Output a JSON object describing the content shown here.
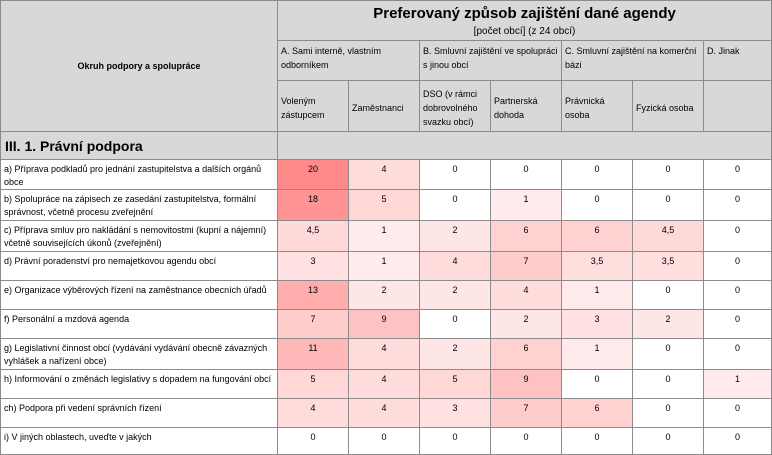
{
  "header": {
    "topic_label": "Okruh podpory a spolupráce",
    "title": "Preferovaný způsob zajištění dané agendy",
    "subtitle": "[počet obcí] (z 24 obcí)",
    "groups": [
      "A. Sami interně, vlastním odborníkem",
      "B. Smluvní zajištění ve spolupráci s jinou obcí",
      "C. Smluvní zajištění na komerční bázi",
      "D. Jinak"
    ],
    "columns": [
      "Voleným zástupcem",
      "Zaměstnanci",
      "DSO (v rámci dobrovolného svazku obcí)",
      "Partnerská dohoda",
      "Právnická osoba",
      "Fyzická osoba",
      ""
    ]
  },
  "section": {
    "title": "III. 1. Právní podpora"
  },
  "rows": [
    {
      "label": "a)    Příprava podkladů pro jednání zastupitelstva a dalších orgánů obce",
      "values": [
        "20",
        "4",
        "0",
        "0",
        "0",
        "0",
        "0"
      ]
    },
    {
      "label": "b)    Spolupráce na zápisech ze zasedání zastupitelstva, formální správnost, včetně procesu zveřejnění",
      "values": [
        "18",
        "5",
        "0",
        "1",
        "0",
        "0",
        "0"
      ]
    },
    {
      "label": "c)    Příprava smluv pro nakládání s nemovitostmi (kupní a nájemní) včetně souvisejících úkonů (zveřejnění)",
      "values": [
        "4,5",
        "1",
        "2",
        "6",
        "6",
        "4,5",
        "0"
      ]
    },
    {
      "label": "d)    Právní poradenství pro nemajetkovou agendu obcí",
      "values": [
        "3",
        "1",
        "4",
        "7",
        "3,5",
        "3,5",
        "0"
      ]
    },
    {
      "label": "e)    Organizace výběrových řízení na zaměstnance obecních úřadů",
      "values": [
        "13",
        "2",
        "2",
        "4",
        "1",
        "0",
        "0"
      ]
    },
    {
      "label": "f)    Personální a mzdová agenda",
      "values": [
        "7",
        "9",
        "0",
        "2",
        "3",
        "2",
        "0"
      ]
    },
    {
      "label": "g)      Legislativní činnost obcí (vydávání vydávání obecně závazných vyhlášek a nařízení obce)",
      "values": [
        "11",
        "4",
        "2",
        "6",
        "1",
        "0",
        "0"
      ]
    },
    {
      "label": "h)    Informování o změnách legislativy s dopadem na fungování obcí",
      "values": [
        "5",
        "4",
        "5",
        "9",
        "0",
        "0",
        "1"
      ]
    },
    {
      "label": "ch)  Podpora při vedení správních řízení",
      "values": [
        "4",
        "4",
        "3",
        "7",
        "6",
        "0",
        "0"
      ]
    },
    {
      "label": "i)    V jiných oblastech, uveďte v jakých",
      "values": [
        "0",
        "0",
        "0",
        "0",
        "0",
        "0",
        "0"
      ]
    }
  ]
}
